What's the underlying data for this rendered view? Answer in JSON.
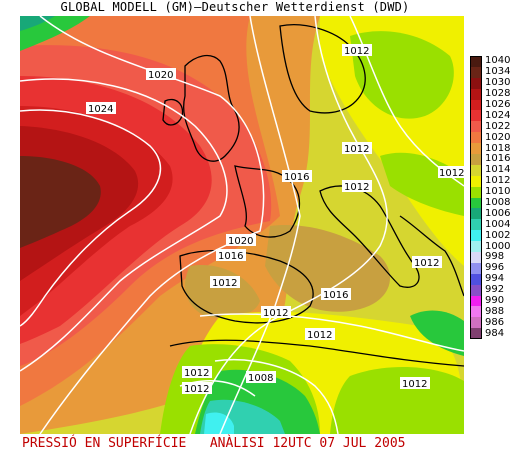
{
  "title": "GLOBAL MODELL (GM)—Deutscher Wetterdienst (DWD)",
  "footer": "PRESSIÓ EN SUPERFÍCIE   ANÀLISI 12UTC 07 JUL 2005",
  "legend": [
    {
      "label": "1040",
      "color": "#4a1a10"
    },
    {
      "label": "1034",
      "color": "#6a2416"
    },
    {
      "label": "1030",
      "color": "#8c1010"
    },
    {
      "label": "1028",
      "color": "#b41414"
    },
    {
      "label": "1026",
      "color": "#d21e1e"
    },
    {
      "label": "1024",
      "color": "#e83232"
    },
    {
      "label": "1022",
      "color": "#f05a4a"
    },
    {
      "label": "1020",
      "color": "#f07840"
    },
    {
      "label": "1018",
      "color": "#e89a3a"
    },
    {
      "label": "1016",
      "color": "#c8a040"
    },
    {
      "label": "1014",
      "color": "#d6d630"
    },
    {
      "label": "1012",
      "color": "#f0f000"
    },
    {
      "label": "1010",
      "color": "#9ae000"
    },
    {
      "label": "1008",
      "color": "#28c83c"
    },
    {
      "label": "1006",
      "color": "#18a878"
    },
    {
      "label": "1004",
      "color": "#30d0b0"
    },
    {
      "label": "1002",
      "color": "#40f0f0"
    },
    {
      "label": "1000",
      "color": "#a0f0f0"
    },
    {
      "label": "998",
      "color": "#d8d8f8"
    },
    {
      "label": "996",
      "color": "#9090f0"
    },
    {
      "label": "994",
      "color": "#5050e0"
    },
    {
      "label": "992",
      "color": "#8850c8"
    },
    {
      "label": "990",
      "color": "#f020f0"
    },
    {
      "label": "988",
      "color": "#f078f0"
    },
    {
      "label": "986",
      "color": "#d070c0"
    },
    {
      "label": "984",
      "color": "#804070"
    }
  ],
  "isobars": [
    {
      "id": "l1024",
      "text": "1024"
    },
    {
      "id": "l1020",
      "text": "1020"
    },
    {
      "id": "l1012a",
      "text": "1012"
    },
    {
      "id": "l1012b",
      "text": "1012"
    },
    {
      "id": "l1012c",
      "text": "1012"
    },
    {
      "id": "l1016a",
      "text": "1016"
    },
    {
      "id": "l1012d",
      "text": "1012"
    },
    {
      "id": "l1020b",
      "text": "1020"
    },
    {
      "id": "l1016b",
      "text": "1016"
    },
    {
      "id": "l1012e",
      "text": "1012"
    },
    {
      "id": "l1012f",
      "text": "1012"
    },
    {
      "id": "l1016c",
      "text": "1016"
    },
    {
      "id": "l1012g",
      "text": "1012"
    },
    {
      "id": "l1012h",
      "text": "1012"
    },
    {
      "id": "l1012i",
      "text": "1012"
    },
    {
      "id": "l1012j",
      "text": "1012"
    },
    {
      "id": "l1008",
      "text": "1008"
    },
    {
      "id": "l1012k",
      "text": "1012"
    }
  ]
}
